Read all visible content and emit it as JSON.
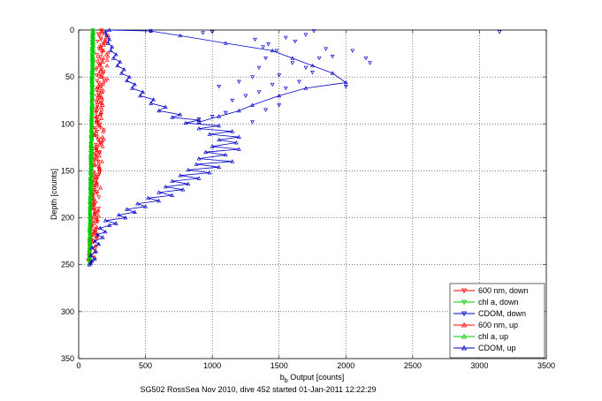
{
  "chart_data": {
    "type": "scatter",
    "xlabel": "b_b Output [counts]",
    "xlabel_base": "b",
    "xlabel_sub": "b",
    "xlabel_rest": " Output [counts]",
    "ylabel": "Depth [counts]",
    "footer": "SG502 RossSea Nov 2010, dive 452 started 01-Jan-2011 12:22:29",
    "xlim": [
      0,
      3500
    ],
    "ylim": [
      0,
      350
    ],
    "y_reversed": true,
    "grid": true,
    "legend_position": "bottom-right",
    "xticks": [
      "0",
      "500",
      "1000",
      "1500",
      "2000",
      "2500",
      "3000",
      "3500"
    ],
    "yticks": [
      "0",
      "50",
      "100",
      "150",
      "200",
      "250",
      "300",
      "350"
    ],
    "series": [
      {
        "name": "600 nm, down",
        "color": "#ff0000",
        "marker": "triangle-down",
        "line": false,
        "generator": {
          "depth_start": 0,
          "depth_end": 230,
          "step": 2,
          "x_top": 170,
          "x_bottom": 110,
          "spread": 60
        }
      },
      {
        "name": "chl a, down",
        "color": "#00cc00",
        "marker": "triangle-down",
        "line": false,
        "generator": {
          "depth_start": 0,
          "depth_end": 248,
          "step": 1.5,
          "x_top": 105,
          "x_bottom": 80,
          "spread": 8
        }
      },
      {
        "name": "CDOM, down",
        "color": "#0000cc",
        "marker": "triangle-down",
        "line": false,
        "points": [
          [
            540,
            1
          ],
          [
            930,
            3
          ],
          [
            1000,
            2
          ],
          [
            1320,
            10
          ],
          [
            1380,
            18
          ],
          [
            1420,
            15
          ],
          [
            1480,
            22
          ],
          [
            1550,
            8
          ],
          [
            1620,
            12
          ],
          [
            1700,
            5
          ],
          [
            1760,
            1
          ],
          [
            1850,
            20
          ],
          [
            1900,
            28
          ],
          [
            2050,
            22
          ],
          [
            2150,
            30
          ],
          [
            2180,
            35
          ],
          [
            1400,
            30
          ],
          [
            1350,
            40
          ],
          [
            1600,
            35
          ],
          [
            1700,
            40
          ],
          [
            1500,
            48
          ],
          [
            1750,
            45
          ],
          [
            1300,
            50
          ],
          [
            1200,
            55
          ],
          [
            1450,
            58
          ],
          [
            1550,
            62
          ],
          [
            1350,
            66
          ],
          [
            1250,
            70
          ],
          [
            1150,
            75
          ],
          [
            1500,
            80
          ],
          [
            1400,
            85
          ],
          [
            1100,
            88
          ],
          [
            1000,
            92
          ],
          [
            900,
            95
          ],
          [
            1300,
            98
          ],
          [
            2000,
            60
          ],
          [
            3150,
            2
          ],
          [
            1050,
            60
          ],
          [
            1650,
            55
          ],
          [
            1800,
            30
          ]
        ]
      },
      {
        "name": "600 nm, up",
        "color": "#ff0000",
        "marker": "triangle-up",
        "line": false,
        "generator": {
          "depth_start": 2,
          "depth_end": 248,
          "step": 2,
          "x_top": 200,
          "x_bottom": 100,
          "spread": 70
        }
      },
      {
        "name": "chl a, up",
        "color": "#00cc00",
        "marker": "triangle-up",
        "line": false,
        "generator": {
          "depth_start": 0,
          "depth_end": 250,
          "step": 1.5,
          "x_top": 110,
          "x_bottom": 82,
          "spread": 8
        }
      },
      {
        "name": "CDOM, up",
        "color": "#0000cc",
        "marker": "triangle-up",
        "line": true,
        "points": [
          [
            80,
            250
          ],
          [
            90,
            248
          ],
          [
            100,
            246
          ],
          [
            120,
            244
          ],
          [
            90,
            240
          ],
          [
            130,
            236
          ],
          [
            100,
            232
          ],
          [
            150,
            228
          ],
          [
            120,
            225
          ],
          [
            180,
            221
          ],
          [
            140,
            218
          ],
          [
            200,
            215
          ],
          [
            160,
            211
          ],
          [
            230,
            208
          ],
          [
            280,
            206
          ],
          [
            200,
            203
          ],
          [
            350,
            200
          ],
          [
            300,
            197
          ],
          [
            420,
            194
          ],
          [
            360,
            191
          ],
          [
            500,
            188
          ],
          [
            440,
            185
          ],
          [
            600,
            182
          ],
          [
            520,
            179
          ],
          [
            700,
            176
          ],
          [
            600,
            173
          ],
          [
            780,
            170
          ],
          [
            650,
            167
          ],
          [
            820,
            164
          ],
          [
            700,
            161
          ],
          [
            900,
            158
          ],
          [
            760,
            155
          ],
          [
            980,
            152
          ],
          [
            820,
            149
          ],
          [
            1050,
            146
          ],
          [
            880,
            143
          ],
          [
            1150,
            140
          ],
          [
            900,
            137
          ],
          [
            1100,
            133
          ],
          [
            950,
            130
          ],
          [
            1200,
            127
          ],
          [
            1000,
            124
          ],
          [
            1180,
            120
          ],
          [
            1050,
            117
          ],
          [
            1200,
            114
          ],
          [
            980,
            111
          ],
          [
            1150,
            108
          ],
          [
            900,
            105
          ],
          [
            1050,
            102
          ],
          [
            800,
            99
          ],
          [
            900,
            96
          ],
          [
            700,
            93
          ],
          [
            760,
            90
          ],
          [
            600,
            86
          ],
          [
            650,
            82
          ],
          [
            540,
            78
          ],
          [
            560,
            74
          ],
          [
            460,
            70
          ],
          [
            480,
            66
          ],
          [
            400,
            62
          ],
          [
            420,
            58
          ],
          [
            360,
            54
          ],
          [
            380,
            50
          ],
          [
            320,
            46
          ],
          [
            340,
            42
          ],
          [
            290,
            38
          ],
          [
            310,
            34
          ],
          [
            260,
            30
          ],
          [
            280,
            26
          ],
          [
            240,
            22
          ],
          [
            250,
            18
          ],
          [
            220,
            14
          ],
          [
            230,
            10
          ],
          [
            210,
            6
          ],
          [
            200,
            2
          ],
          [
            230,
            0
          ],
          [
            540,
            1
          ],
          [
            760,
            6
          ],
          [
            1100,
            14
          ],
          [
            1450,
            22
          ],
          [
            1600,
            30
          ],
          [
            1750,
            38
          ],
          [
            1900,
            46
          ],
          [
            2000,
            56
          ],
          [
            1700,
            62
          ],
          [
            1500,
            70
          ],
          [
            1300,
            80
          ],
          [
            1200,
            86
          ],
          [
            1050,
            92
          ],
          [
            900,
            98
          ]
        ]
      }
    ]
  }
}
